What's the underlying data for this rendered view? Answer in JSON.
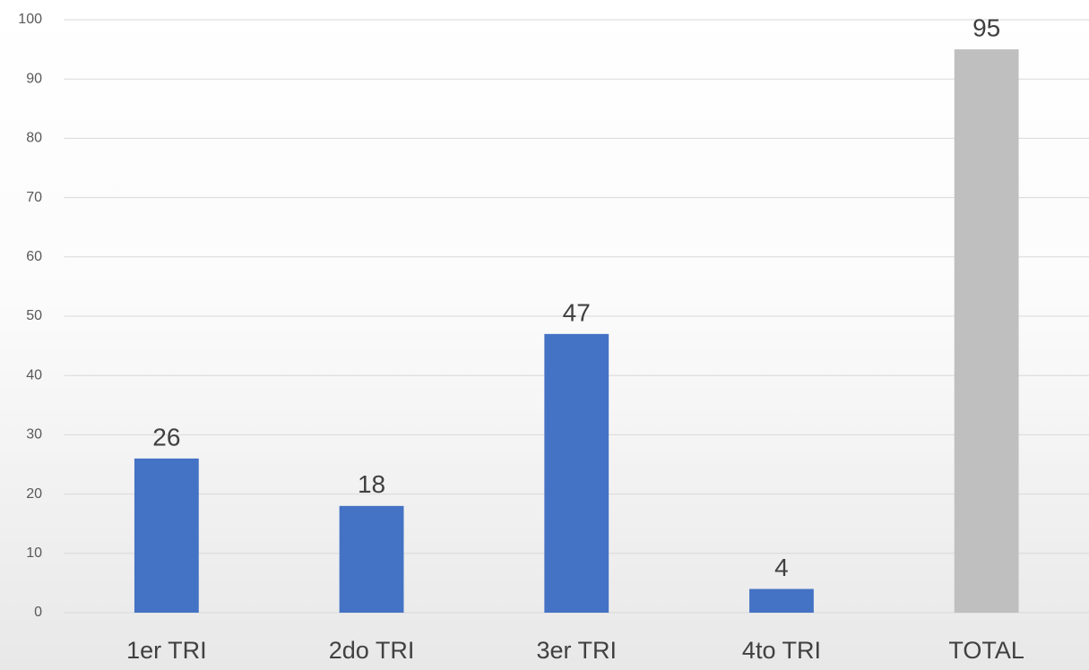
{
  "chart_data": {
    "type": "bar",
    "categories": [
      "1er TRI",
      "2do TRI",
      "3er TRI",
      "4to TRI",
      "TOTAL"
    ],
    "values": [
      26,
      18,
      47,
      4,
      95
    ],
    "colors": [
      "#4472c4",
      "#4472c4",
      "#4472c4",
      "#4472c4",
      "#bfbfbf"
    ],
    "ylim": [
      0,
      100
    ],
    "yticks": [
      0,
      10,
      20,
      30,
      40,
      50,
      60,
      70,
      80,
      90,
      100
    ],
    "grid": true
  }
}
